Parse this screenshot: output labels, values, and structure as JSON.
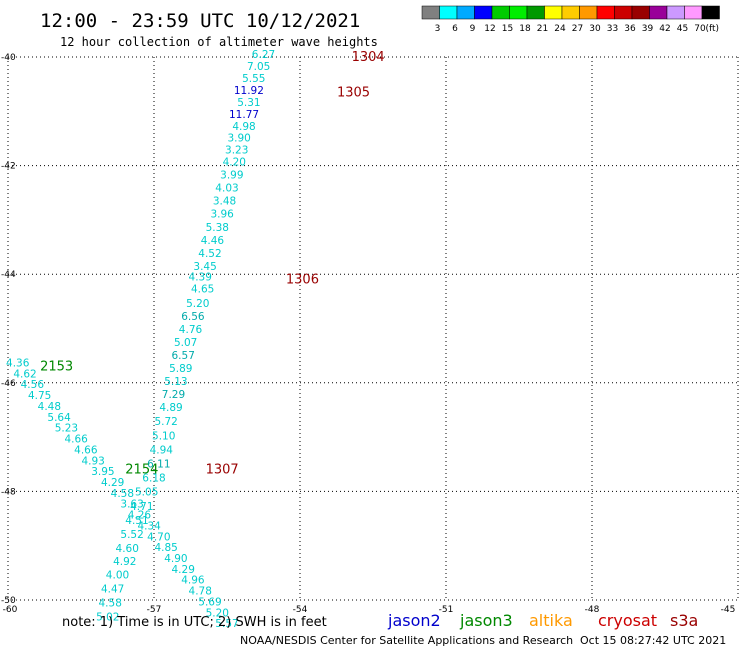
{
  "title": "12:00 - 23:59 UTC 10/12/2021",
  "subtitle": "12 hour collection of altimeter wave heights",
  "note": "note: 1) Time is in UTC; 2) SWH is in feet",
  "credit": "NOAA/NESDIS Center for Satellite Applications and Research",
  "timestamp": "Oct 15 08:27:42 UTC 2021",
  "colorbar": {
    "unit": "(ft)",
    "colors": [
      "#808080",
      "#00ffff",
      "#00aaff",
      "#0000ff",
      "#00cc00",
      "#00ee00",
      "#009900",
      "#ffff00",
      "#ffcc00",
      "#ff9900",
      "#ff0000",
      "#cc0000",
      "#990000",
      "#990099",
      "#cc99ff",
      "#ff99ff",
      "#000000"
    ],
    "labels": [
      "3",
      "6",
      "9",
      "12",
      "15",
      "18",
      "21",
      "24",
      "27",
      "30",
      "33",
      "36",
      "39",
      "42",
      "45",
      "70"
    ]
  },
  "satellites": [
    {
      "name": "jason2",
      "color": "#0000cc"
    },
    {
      "name": "jason3",
      "color": "#008800"
    },
    {
      "name": "altika",
      "color": "#ff9900"
    },
    {
      "name": "cryosat",
      "color": "#cc0000"
    },
    {
      "name": "s3a",
      "color": "#990000"
    }
  ],
  "chart_data": {
    "type": "scatter",
    "xlim": [
      -60,
      -45
    ],
    "ylim": [
      -50,
      -40
    ],
    "xticks": [
      "-60",
      "-57",
      "-54",
      "-51",
      "-48",
      "-45"
    ],
    "yticks": [
      "-40",
      "-42",
      "-44",
      "-46",
      "-48",
      "-50"
    ],
    "grid": true,
    "pass_labels": [
      {
        "text": "1304",
        "lon": -52.6,
        "lat": -40.0,
        "color": "#990000"
      },
      {
        "text": "1305",
        "lon": -52.9,
        "lat": -40.65,
        "color": "#990000"
      },
      {
        "text": "1306",
        "lon": -53.95,
        "lat": -44.1,
        "color": "#990000"
      },
      {
        "text": "1307",
        "lon": -55.6,
        "lat": -47.6,
        "color": "#990000"
      },
      {
        "text": "2153",
        "lon": -59.0,
        "lat": -45.7,
        "color": "#008800"
      },
      {
        "text": "2154",
        "lon": -57.25,
        "lat": -47.6,
        "color": "#008800"
      }
    ],
    "points": [
      {
        "v": "6.27",
        "lon": -54.75,
        "lat": -40.02,
        "color": "#00cccc"
      },
      {
        "v": "7.05",
        "lon": -54.85,
        "lat": -40.24,
        "color": "#00cccc"
      },
      {
        "v": "5.55",
        "lon": -54.95,
        "lat": -40.46,
        "color": "#00cccc"
      },
      {
        "v": "11.92",
        "lon": -55.05,
        "lat": -40.68,
        "color": "#0000cc"
      },
      {
        "v": "5.31",
        "lon": -55.05,
        "lat": -40.9,
        "color": "#00cccc"
      },
      {
        "v": "11.77",
        "lon": -55.15,
        "lat": -41.12,
        "color": "#0000cc"
      },
      {
        "v": "4.98",
        "lon": -55.15,
        "lat": -41.34,
        "color": "#00cccc"
      },
      {
        "v": "3.90",
        "lon": -55.25,
        "lat": -41.56,
        "color": "#00cccc"
      },
      {
        "v": "3.23",
        "lon": -55.3,
        "lat": -41.78,
        "color": "#00cccc"
      },
      {
        "v": "4.20",
        "lon": -55.35,
        "lat": -42.0,
        "color": "#00cccc"
      },
      {
        "v": "3.99",
        "lon": -55.4,
        "lat": -42.24,
        "color": "#00cccc"
      },
      {
        "v": "4.03",
        "lon": -55.5,
        "lat": -42.48,
        "color": "#00cccc"
      },
      {
        "v": "3.48",
        "lon": -55.55,
        "lat": -42.72,
        "color": "#00cccc"
      },
      {
        "v": "3.96",
        "lon": -55.6,
        "lat": -42.96,
        "color": "#00cccc"
      },
      {
        "v": "5.38",
        "lon": -55.7,
        "lat": -43.2,
        "color": "#00cccc"
      },
      {
        "v": "4.46",
        "lon": -55.8,
        "lat": -43.44,
        "color": "#00cccc"
      },
      {
        "v": "4.52",
        "lon": -55.85,
        "lat": -43.68,
        "color": "#00cccc"
      },
      {
        "v": "3.45",
        "lon": -55.95,
        "lat": -43.92,
        "color": "#00cccc"
      },
      {
        "v": "4.39",
        "lon": -56.05,
        "lat": -44.12,
        "color": "#00cccc"
      },
      {
        "v": "4.65",
        "lon": -56.0,
        "lat": -44.34,
        "color": "#00cccc"
      },
      {
        "v": "5.20",
        "lon": -56.1,
        "lat": -44.6,
        "color": "#00cccc"
      },
      {
        "v": "6.56",
        "lon": -56.2,
        "lat": -44.84,
        "color": "#00aaaa"
      },
      {
        "v": "4.76",
        "lon": -56.25,
        "lat": -45.08,
        "color": "#00cccc"
      },
      {
        "v": "5.07",
        "lon": -56.35,
        "lat": -45.32,
        "color": "#00cccc"
      },
      {
        "v": "6.57",
        "lon": -56.4,
        "lat": -45.56,
        "color": "#00aaaa"
      },
      {
        "v": "5.89",
        "lon": -56.45,
        "lat": -45.8,
        "color": "#00cccc"
      },
      {
        "v": "5.13",
        "lon": -56.55,
        "lat": -46.04,
        "color": "#00cccc"
      },
      {
        "v": "7.29",
        "lon": -56.6,
        "lat": -46.28,
        "color": "#00aaaa"
      },
      {
        "v": "4.89",
        "lon": -56.65,
        "lat": -46.52,
        "color": "#00cccc"
      },
      {
        "v": "5.72",
        "lon": -56.75,
        "lat": -46.78,
        "color": "#00cccc"
      },
      {
        "v": "5.10",
        "lon": -56.8,
        "lat": -47.04,
        "color": "#00cccc"
      },
      {
        "v": "4.94",
        "lon": -56.85,
        "lat": -47.3,
        "color": "#00cccc"
      },
      {
        "v": "6.11",
        "lon": -56.9,
        "lat": -47.56,
        "color": "#00aaaa"
      },
      {
        "v": "6.18",
        "lon": -57.0,
        "lat": -47.82,
        "color": "#00cccc"
      },
      {
        "v": "5.05",
        "lon": -57.15,
        "lat": -48.08,
        "color": "#00cccc"
      },
      {
        "v": "4.71",
        "lon": -57.25,
        "lat": -48.34,
        "color": "#00cccc"
      },
      {
        "v": "4.51",
        "lon": -57.35,
        "lat": -48.6,
        "color": "#00cccc"
      },
      {
        "v": "5.52",
        "lon": -57.45,
        "lat": -48.86,
        "color": "#00cccc"
      },
      {
        "v": "4.60",
        "lon": -57.55,
        "lat": -49.12,
        "color": "#00cccc"
      },
      {
        "v": "4.92",
        "lon": -57.6,
        "lat": -49.36,
        "color": "#00cccc"
      },
      {
        "v": "4.00",
        "lon": -57.75,
        "lat": -49.6,
        "color": "#00cccc"
      },
      {
        "v": "4.47",
        "lon": -57.85,
        "lat": -49.86,
        "color": "#00cccc"
      },
      {
        "v": "4.58",
        "lon": -57.9,
        "lat": -50.12,
        "color": "#00cccc"
      },
      {
        "v": "5.02",
        "lon": -57.95,
        "lat": -50.38,
        "color": "#00cccc"
      },
      {
        "v": "4.36",
        "lon": -59.8,
        "lat": -45.7,
        "color": "#00cccc"
      },
      {
        "v": "4.62",
        "lon": -59.65,
        "lat": -45.9,
        "color": "#00cccc"
      },
      {
        "v": "4.56",
        "lon": -59.5,
        "lat": -46.1,
        "color": "#00cccc"
      },
      {
        "v": "4.75",
        "lon": -59.35,
        "lat": -46.3,
        "color": "#00cccc"
      },
      {
        "v": "4.48",
        "lon": -59.15,
        "lat": -46.5,
        "color": "#00cccc"
      },
      {
        "v": "5.64",
        "lon": -58.95,
        "lat": -46.7,
        "color": "#00cccc"
      },
      {
        "v": "5.23",
        "lon": -58.8,
        "lat": -46.9,
        "color": "#00cccc"
      },
      {
        "v": "4.66",
        "lon": -58.6,
        "lat": -47.1,
        "color": "#00cccc"
      },
      {
        "v": "4.66",
        "lon": -58.4,
        "lat": -47.3,
        "color": "#00cccc"
      },
      {
        "v": "4.93",
        "lon": -58.25,
        "lat": -47.5,
        "color": "#00cccc"
      },
      {
        "v": "3.95",
        "lon": -58.05,
        "lat": -47.7,
        "color": "#00cccc"
      },
      {
        "v": "4.29",
        "lon": -57.85,
        "lat": -47.9,
        "color": "#00cccc"
      },
      {
        "v": "4.58",
        "lon": -57.65,
        "lat": -48.1,
        "color": "#00cccc"
      },
      {
        "v": "3.63",
        "lon": -57.45,
        "lat": -48.3,
        "color": "#00cccc"
      },
      {
        "v": "4.26",
        "lon": -57.3,
        "lat": -48.5,
        "color": "#00cccc"
      },
      {
        "v": "4.34",
        "lon": -57.1,
        "lat": -48.7,
        "color": "#00cccc"
      },
      {
        "v": "4.70",
        "lon": -56.9,
        "lat": -48.9,
        "color": "#00cccc"
      },
      {
        "v": "4.85",
        "lon": -56.75,
        "lat": -49.1,
        "color": "#00cccc"
      },
      {
        "v": "4.90",
        "lon": -56.55,
        "lat": -49.3,
        "color": "#00cccc"
      },
      {
        "v": "4.29",
        "lon": -56.4,
        "lat": -49.5,
        "color": "#00cccc"
      },
      {
        "v": "4.96",
        "lon": -56.2,
        "lat": -49.7,
        "color": "#00cccc"
      },
      {
        "v": "4.78",
        "lon": -56.05,
        "lat": -49.9,
        "color": "#00cccc"
      },
      {
        "v": "5.69",
        "lon": -55.85,
        "lat": -50.1,
        "color": "#00cccc"
      },
      {
        "v": "5.20",
        "lon": -55.7,
        "lat": -50.3,
        "color": "#00cccc"
      },
      {
        "v": "5.57",
        "lon": -55.5,
        "lat": -50.5,
        "color": "#00cccc"
      }
    ]
  }
}
